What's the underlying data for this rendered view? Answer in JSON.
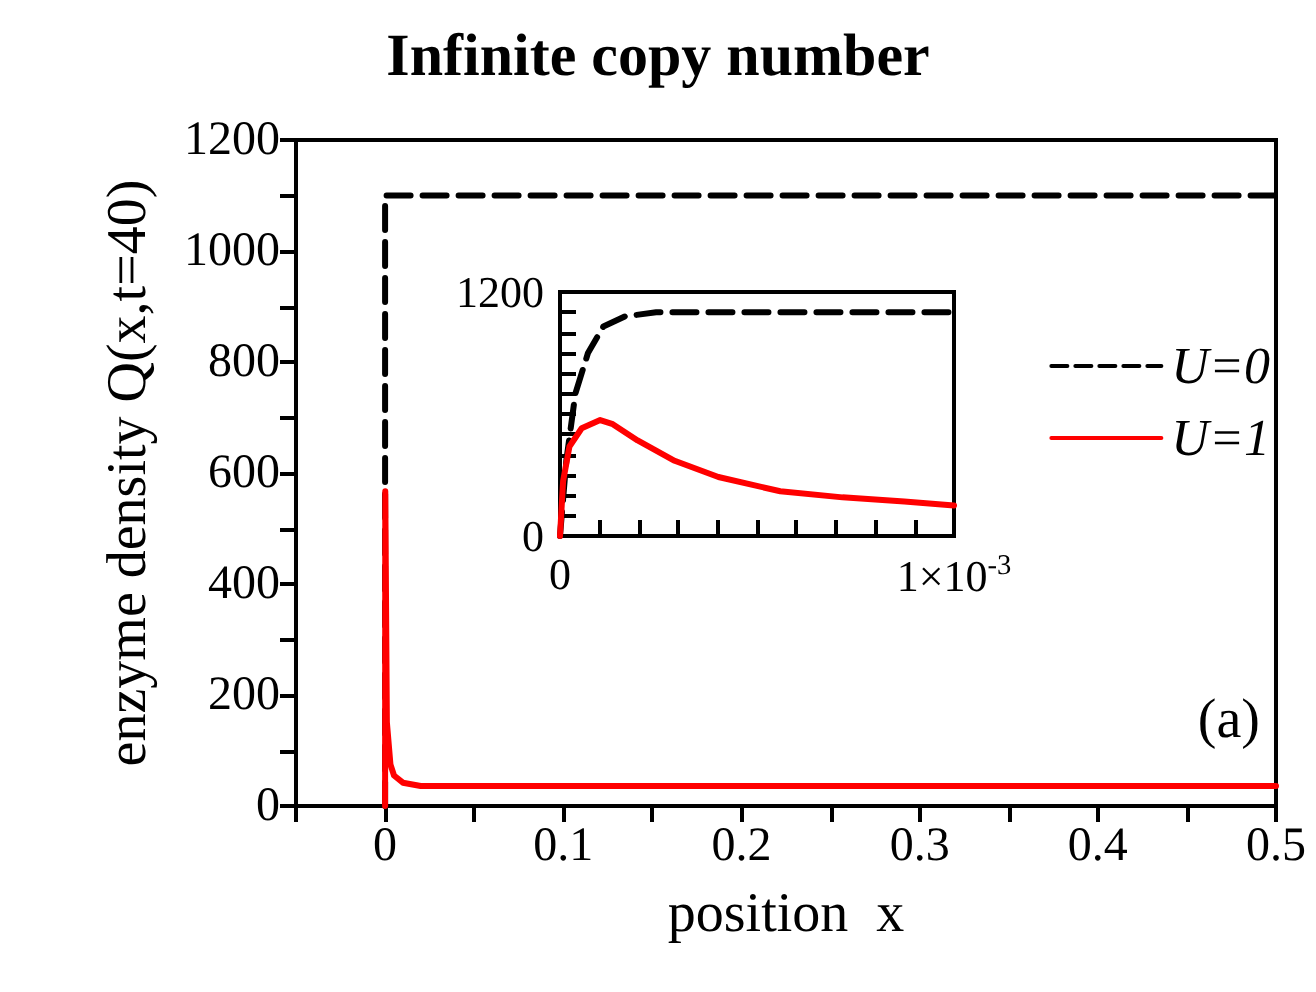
{
  "chart_data": [
    {
      "type": "line",
      "title": "Infinite copy number",
      "xlabel": "position  x",
      "ylabel": "enzyme density Q(x,t=40)",
      "xlim": [
        -0.05,
        0.5
      ],
      "xticks": [
        {
          "value": -0.05,
          "label": null
        },
        0,
        {
          "value": 0.05,
          "label": null
        },
        0.1,
        {
          "value": 0.15,
          "label": null
        },
        0.2,
        {
          "value": 0.25,
          "label": null
        },
        0.3,
        {
          "value": 0.35,
          "label": null
        },
        0.4,
        {
          "value": 0.45,
          "label": null
        },
        0.5
      ],
      "ylim": [
        0,
        1200
      ],
      "yticks": [
        0,
        {
          "value": 100,
          "label": null
        },
        200,
        {
          "value": 300,
          "label": null
        },
        400,
        {
          "value": 500,
          "label": null
        },
        600,
        {
          "value": 700,
          "label": null
        },
        800,
        {
          "value": 900,
          "label": null
        },
        1000,
        {
          "value": 1100,
          "label": null
        },
        1200
      ],
      "grid": false,
      "marker": "none",
      "legend": "right",
      "annotations": [
        "(a)"
      ],
      "series": [
        {
          "name": "U=0",
          "color": "#000000",
          "line_style": "dashed",
          "x": [
            0,
            0,
            0.5
          ],
          "values": [
            0,
            1100,
            1100
          ]
        },
        {
          "name": "U=1",
          "color": "#ff0000",
          "line_style": "solid",
          "x": [
            0,
            0.0001,
            0.001,
            0.003,
            0.005,
            0.01,
            0.02,
            0.5
          ],
          "values": [
            0,
            567,
            151,
            75,
            55,
            42,
            36,
            36
          ]
        }
      ]
    },
    {
      "type": "line",
      "xlim": [
        0,
        0.001
      ],
      "xticks": [
        0,
        {
          "value": 0.0001,
          "label": null
        },
        {
          "value": 0.0002,
          "label": null
        },
        {
          "value": 0.0003,
          "label": null
        },
        {
          "value": 0.0004,
          "label": null
        },
        {
          "value": 0.0005,
          "label": null
        },
        {
          "value": 0.0006,
          "label": null
        },
        {
          "value": 0.0007,
          "label": null
        },
        {
          "value": 0.0008,
          "label": null
        },
        {
          "value": 0.0009,
          "label": null
        },
        {
          "value": 0.001,
          "label": "1×10$^{-3}$"
        }
      ],
      "ylim": [
        0,
        1200
      ],
      "yticks": [
        0,
        {
          "value": 100,
          "label": null
        },
        {
          "value": 200,
          "label": null
        },
        {
          "value": 300,
          "label": null
        },
        {
          "value": 400,
          "label": null
        },
        {
          "value": 500,
          "label": null
        },
        {
          "value": 600,
          "label": null
        },
        {
          "value": 700,
          "label": null
        },
        {
          "value": 800,
          "label": null
        },
        {
          "value": 900,
          "label": null
        },
        {
          "value": 1000,
          "label": null
        },
        {
          "value": 1100,
          "label": null
        },
        1200
      ],
      "grid": false,
      "marker": "none",
      "series": [
        {
          "color": "#000000",
          "line_style": "dashed",
          "x": [
            0,
            1.6e-05,
            3.9e-05,
            7.1e-05,
            0.00011,
            0.000165,
            0.000244,
            0.001
          ],
          "values": [
            0,
            370,
            700,
            900,
            1030,
            1080,
            1100,
            1100
          ]
        },
        {
          "color": "#ff0000",
          "line_style": "solid",
          "x": [
            0,
            7.9e-06,
            2.4e-05,
            5.5e-05,
            0.000102,
            0.000134,
            0.000197,
            0.000291,
            0.000402,
            0.000559,
            0.000717,
            0.000874,
            0.001
          ],
          "values": [
            0,
            270,
            440,
            530,
            570,
            550,
            470,
            370,
            290,
            220,
            190,
            170,
            150
          ]
        }
      ]
    }
  ]
}
